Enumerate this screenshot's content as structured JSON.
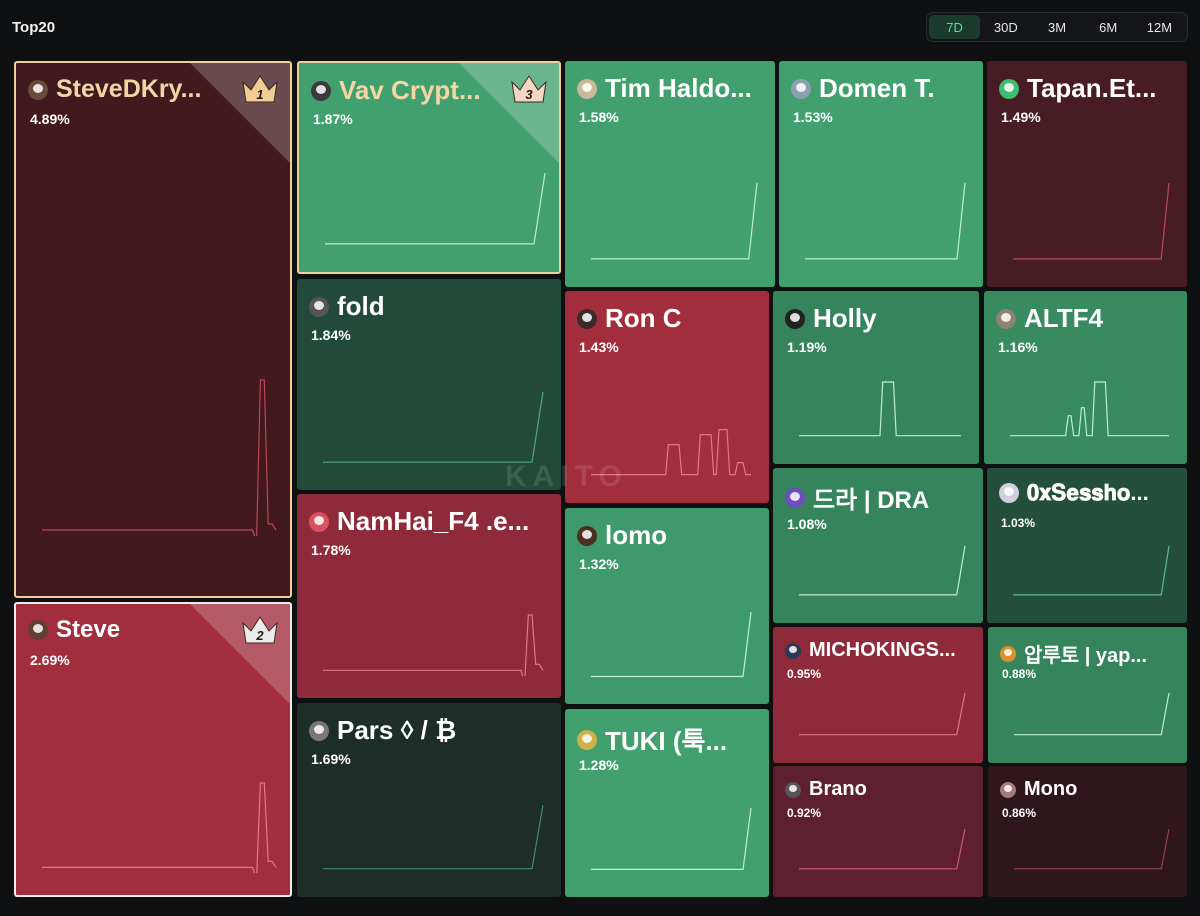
{
  "title": "Top20",
  "filters": [
    {
      "label": "7D",
      "active": true
    },
    {
      "label": "30D",
      "active": false
    },
    {
      "label": "3M",
      "active": false
    },
    {
      "label": "6M",
      "active": false
    },
    {
      "label": "12M",
      "active": false
    }
  ],
  "watermark": "KAITO",
  "colors": {
    "green": "#42a06f",
    "dark_green": "#22493a",
    "red": "#a12d3d",
    "dark_red": "#471c25"
  },
  "tiles": [
    {
      "name": "SteveDKry...",
      "pct": "4.89%",
      "rank": "1",
      "bg": "#41191f",
      "line": "#b9485b",
      "avatar": "#6a4a3a"
    },
    {
      "name": "Steve",
      "pct": "2.69%",
      "rank": "2",
      "bg": "#a12d3d",
      "line": "#e27785",
      "avatar": "#604030"
    },
    {
      "name": "Vav Crypt...",
      "pct": "1.87%",
      "rank": "3",
      "bg": "#42a06f",
      "line": "#bdeed3",
      "avatar": "#3b3b3b"
    },
    {
      "name": "fold",
      "pct": "1.84%",
      "rank": "",
      "bg": "#22493a",
      "line": "#4fa87c",
      "avatar": "#555"
    },
    {
      "name": "NamHai_F4 .e...",
      "pct": "1.78%",
      "rank": "",
      "bg": "#8e2a3a",
      "line": "#e27785",
      "avatar": "#d9515f"
    },
    {
      "name": "Pars ◊ / ₿",
      "pct": "1.69%",
      "rank": "",
      "bg": "#1c2e27",
      "line": "#3e8b66",
      "avatar": "#777"
    },
    {
      "name": "Tim Haldo...",
      "pct": "1.58%",
      "rank": "",
      "bg": "#42a06f",
      "line": "#bdeed3",
      "avatar": "#c9b89a"
    },
    {
      "name": "Ron C",
      "pct": "1.43%",
      "rank": "",
      "bg": "#a12d3d",
      "line": "#e27785",
      "avatar": "#3a2a2a"
    },
    {
      "name": "lomo",
      "pct": "1.32%",
      "rank": "",
      "bg": "#3e9a6a",
      "line": "#bdeed3",
      "avatar": "#4a3020"
    },
    {
      "name": "TUKI (툭...",
      "pct": "1.28%",
      "rank": "",
      "bg": "#42a06f",
      "line": "#bdeed3",
      "avatar": "#d0b04a"
    },
    {
      "name": "Domen T.",
      "pct": "1.53%",
      "rank": "",
      "bg": "#42a06f",
      "line": "#bdeed3",
      "avatar": "#8aa0b0"
    },
    {
      "name": "Tapan.Et...",
      "pct": "1.49%",
      "rank": "",
      "bg": "#471c25",
      "line": "#b9485b",
      "avatar": "#3dbd6e"
    },
    {
      "name": "Holly",
      "pct": "1.19%",
      "rank": "",
      "bg": "#36845b",
      "line": "#bdeed3",
      "avatar": "#222"
    },
    {
      "name": "ALTF4",
      "pct": "1.16%",
      "rank": "",
      "bg": "#388a5f",
      "line": "#bdeed3",
      "avatar": "#8c8470"
    },
    {
      "name": "드라 | DRA",
      "pct": "1.08%",
      "rank": "",
      "bg": "#36845b",
      "line": "#bdeed3",
      "avatar": "#6f4cc0"
    },
    {
      "name": "𝟎𝐱𝐒𝐞𝐬𝐬𝐡𝐨...",
      "pct": "1.03%",
      "rank": "",
      "bg": "#254f3d",
      "line": "#5dbb8b",
      "avatar": "#cfcfe0"
    },
    {
      "name": "MICHOKINGS...",
      "pct": "0.95%",
      "rank": "",
      "bg": "#8e2a3a",
      "line": "#e27785",
      "avatar": "#2a3a55"
    },
    {
      "name": "압루토 | yap...",
      "pct": "0.88%",
      "rank": "",
      "bg": "#36845b",
      "line": "#bdeed3",
      "avatar": "#e0902a"
    },
    {
      "name": "Brano",
      "pct": "0.92%",
      "rank": "",
      "bg": "#5e2030",
      "line": "#c85c6e",
      "avatar": "#555"
    },
    {
      "name": "Mono",
      "pct": "0.86%",
      "rank": "",
      "bg": "#2e161c",
      "line": "#9a3d4c",
      "avatar": "#aa7777"
    }
  ]
}
